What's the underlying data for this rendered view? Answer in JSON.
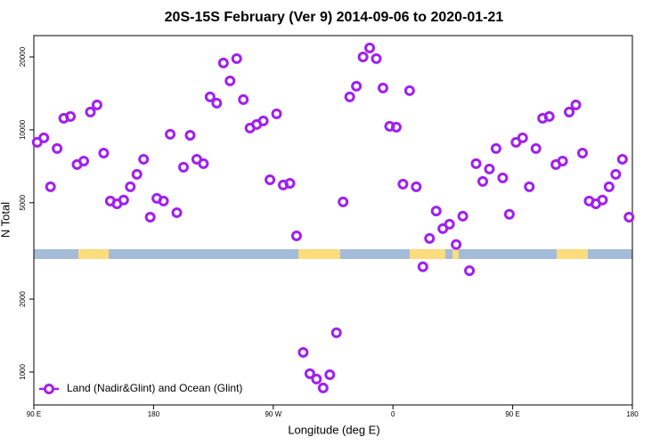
{
  "chart_data": {
    "type": "scatter",
    "title": "20S-15S February (Ver 9)   2014-09-06 to 2020-01-21",
    "x_label": "Longitude (deg E)",
    "y_label": "N Total",
    "log_y": true,
    "legend_position": "bottom-left",
    "xlim": [
      90,
      540
    ],
    "xticks": [
      {
        "value": 90,
        "label": "90 E"
      },
      {
        "value": 180,
        "label": "180"
      },
      {
        "value": 270,
        "label": "90 W"
      },
      {
        "value": 360,
        "label": "0"
      },
      {
        "value": 450,
        "label": "90 E"
      },
      {
        "value": 540,
        "label": "180"
      }
    ],
    "ylim": [
      731,
      24500
    ],
    "yticks": [
      1000,
      2000,
      5000,
      10000,
      20000
    ],
    "series": [
      {
        "name": "Land (Nadir&Glint) and Ocean (Glint)",
        "color": "#a020f0",
        "x": [
          92.5,
          97.5,
          102.5,
          107.5,
          112.5,
          117.5,
          122.5,
          127.5,
          132.5,
          137.5,
          142.5,
          147.5,
          152.5,
          157.5,
          162.5,
          167.5,
          172.5,
          177.5,
          182.5,
          187.5,
          192.5,
          197.5,
          202.5,
          207.5,
          212.5,
          217.5,
          222.5,
          227.5,
          232.5,
          237.5,
          242.5,
          247.5,
          252.5,
          257.5,
          262.5,
          267.5,
          272.5,
          277.5,
          282.5,
          287.5,
          292.5,
          297.5,
          302.5,
          307.5,
          312.5,
          317.5,
          322.5,
          327.5,
          332.5,
          337.5,
          342.5,
          347.5,
          352.5,
          357.5,
          362.5,
          367.5,
          372.5,
          377.5,
          382.5,
          387.5,
          392.5,
          397.5,
          402.5,
          407.5,
          412.5,
          417.5,
          422.5,
          427.5,
          432.5,
          437.5,
          442.5,
          447.5,
          452.5,
          457.5,
          462.5,
          467.5,
          472.5,
          477.5,
          482.5,
          487.5,
          492.5,
          497.5,
          502.5,
          507.5,
          512.5,
          517.5,
          522.5,
          527.5,
          532.5,
          537.5
        ],
        "values": [
          8880,
          9270,
          5820,
          8370,
          11160,
          11350,
          7190,
          7430,
          11840,
          12670,
          8020,
          5080,
          4950,
          5130,
          5820,
          6550,
          7560,
          4360,
          5210,
          5080,
          9590,
          4550,
          7010,
          9500,
          7560,
          7250,
          13680,
          12890,
          18880,
          15930,
          19690,
          13340,
          10170,
          10520,
          10880,
          6220,
          11650,
          5920,
          6010,
          3650,
          1205,
          984,
          935,
          859,
          975,
          1452,
          5040,
          13680,
          15140,
          20000,
          21780,
          19690,
          14890,
          10340,
          10260,
          5970,
          14520,
          5820,
          2720,
          3560,
          4620,
          3910,
          4080,
          3360,
          4400,
          2620,
          7250,
          6120,
          6890,
          8370,
          6330,
          4480,
          8880,
          9270,
          5820,
          8370,
          11160,
          11350,
          7190,
          7430,
          11840,
          12670,
          8020,
          5080,
          4950,
          5130,
          5820,
          6550,
          7560,
          4360
        ]
      }
    ]
  }
}
